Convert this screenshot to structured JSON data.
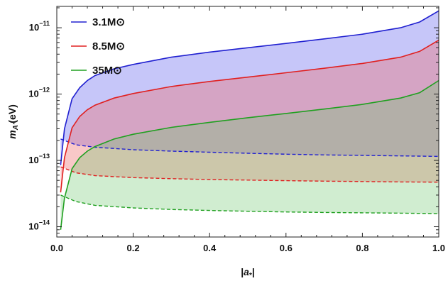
{
  "chart_data": {
    "type": "area",
    "xlabel": "|a*|",
    "ylabel": "mA'(eV)",
    "xlim": [
      0,
      1
    ],
    "ylim": [
      7e-15,
      2.1e-11
    ],
    "yscale": "log",
    "x_ticks": [
      "0.0",
      "0.2",
      "0.4",
      "0.6",
      "0.8",
      "1.0"
    ],
    "y_ticks": [
      {
        "value": 1e-14,
        "mantissa": "10",
        "exponent": "−14"
      },
      {
        "value": 1e-13,
        "mantissa": "10",
        "exponent": "−13"
      },
      {
        "value": 1e-12,
        "mantissa": "10",
        "exponent": "−12"
      },
      {
        "value": 1e-11,
        "mantissa": "10",
        "exponent": "−11"
      }
    ],
    "legend_position": "top-left",
    "series": [
      {
        "name": "3.1M⊙",
        "color": "#2020d0",
        "fill": "rgba(120,120,240,0.42)",
        "upper": {
          "x": [
            0.01,
            0.02,
            0.04,
            0.06,
            0.08,
            0.1,
            0.15,
            0.2,
            0.3,
            0.4,
            0.5,
            0.6,
            0.7,
            0.8,
            0.9,
            0.95,
            1.0
          ],
          "y": [
            8.5e-14,
            3e-13,
            8.5e-13,
            1.25e-12,
            1.6e-12,
            1.9e-12,
            2.4e-12,
            2.8e-12,
            3.6e-12,
            4.3e-12,
            5e-12,
            5.8e-12,
            6.8e-12,
            8e-12,
            1e-11,
            1.22e-11,
            1.8e-11
          ]
        },
        "lower": {
          "x": [
            0.01,
            0.05,
            0.1,
            0.2,
            0.3,
            0.4,
            0.5,
            0.6,
            0.7,
            0.8,
            0.9,
            1.0
          ],
          "y": [
            2.1e-13,
            1.72e-13,
            1.58e-13,
            1.45e-13,
            1.38e-13,
            1.33e-13,
            1.28e-13,
            1.24e-13,
            1.21e-13,
            1.19e-13,
            1.17e-13,
            1.15e-13
          ]
        }
      },
      {
        "name": "8.5M⊙",
        "color": "#e02020",
        "fill": "rgba(240,110,110,0.38)",
        "upper": {
          "x": [
            0.01,
            0.02,
            0.04,
            0.06,
            0.08,
            0.1,
            0.15,
            0.2,
            0.3,
            0.4,
            0.5,
            0.6,
            0.7,
            0.8,
            0.9,
            0.95,
            1.0
          ],
          "y": [
            3.3e-14,
            1.1e-13,
            3.1e-13,
            4.6e-13,
            5.8e-13,
            6.8e-13,
            8.7e-13,
            1.02e-12,
            1.3e-12,
            1.55e-12,
            1.8e-12,
            2.1e-12,
            2.45e-12,
            2.9e-12,
            3.6e-12,
            4.4e-12,
            6.5e-12
          ]
        },
        "lower": {
          "x": [
            0.01,
            0.05,
            0.1,
            0.2,
            0.3,
            0.4,
            0.5,
            0.6,
            0.7,
            0.8,
            0.9,
            1.0
          ],
          "y": [
            8e-14,
            6.5e-14,
            5.9e-14,
            5.5e-14,
            5.3e-14,
            5.15e-14,
            5.05e-14,
            4.95e-14,
            4.87e-14,
            4.8e-14,
            4.74e-14,
            4.7e-14
          ]
        }
      },
      {
        "name": "35M⊙",
        "color": "#20a020",
        "fill": "rgba(110,200,110,0.32)",
        "upper": {
          "x": [
            0.01,
            0.02,
            0.04,
            0.06,
            0.08,
            0.1,
            0.15,
            0.2,
            0.3,
            0.4,
            0.5,
            0.6,
            0.7,
            0.8,
            0.9,
            0.95,
            1.0
          ],
          "y": [
            9e-15,
            2.7e-14,
            7.5e-14,
            1.1e-13,
            1.38e-13,
            1.62e-13,
            2.1e-13,
            2.48e-13,
            3.15e-13,
            3.75e-13,
            4.4e-13,
            5.1e-13,
            5.95e-13,
            7e-13,
            8.7e-13,
            1.05e-12,
            1.6e-12
          ]
        },
        "lower": {
          "x": [
            0.01,
            0.05,
            0.1,
            0.2,
            0.3,
            0.4,
            0.5,
            0.6,
            0.7,
            0.8,
            0.9,
            1.0
          ],
          "y": [
            3e-14,
            2.4e-14,
            2.1e-14,
            1.92e-14,
            1.82e-14,
            1.76e-14,
            1.71e-14,
            1.67e-14,
            1.64e-14,
            1.62e-14,
            1.6e-14,
            1.58e-14
          ]
        }
      }
    ]
  }
}
